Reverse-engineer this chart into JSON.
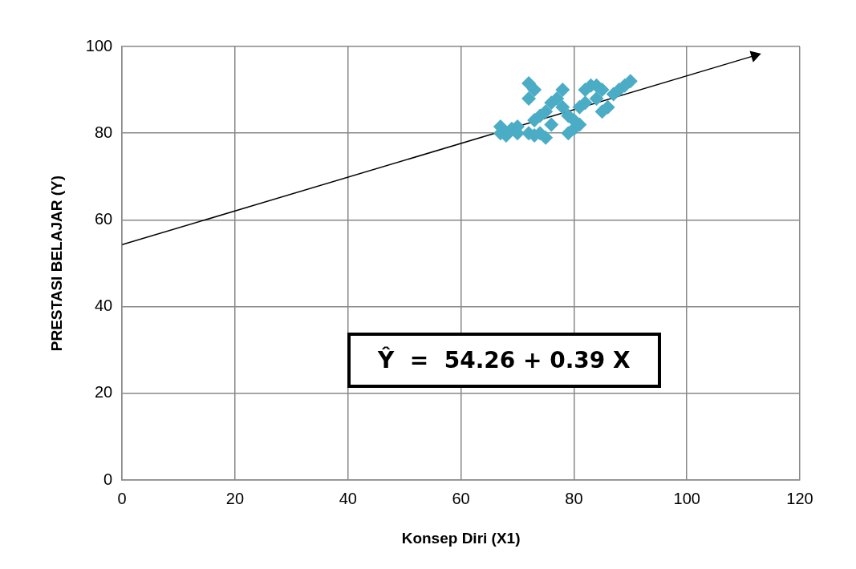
{
  "chart_data": {
    "type": "scatter",
    "xlabel": "Konsep Diri (X1)",
    "ylabel": "PRESTASI BELAJAR (Y)",
    "xlim": [
      0,
      120
    ],
    "xticks": [
      0,
      20,
      40,
      60,
      80,
      100,
      120
    ],
    "ylim": [
      0,
      100
    ],
    "yticks": [
      0,
      20,
      40,
      60,
      80,
      100
    ],
    "grid": true,
    "legend": false,
    "marker": "diamond",
    "annotations": [
      "Ŷ  =  54.26 + 0.39 X"
    ],
    "series": [
      {
        "color": "#4bacc6",
        "x": [
          67,
          67,
          68,
          69,
          70,
          70,
          72,
          72,
          73,
          72,
          73,
          74,
          75,
          73,
          74,
          75,
          76,
          76,
          77,
          78,
          78,
          79,
          79,
          80,
          80,
          81,
          81,
          82,
          82,
          83,
          84,
          84,
          85,
          85,
          86,
          87,
          88,
          89,
          90
        ],
        "values": [
          81.5,
          80,
          79.5,
          81,
          80,
          81.5,
          91.5,
          88,
          90,
          80,
          79.5,
          80,
          79,
          83,
          84,
          85,
          87,
          82,
          88,
          90,
          86,
          84,
          80,
          81,
          83,
          82,
          86,
          87,
          90,
          91,
          88,
          91,
          85,
          90,
          86,
          89,
          90,
          91,
          92
        ]
      },
      {
        "type": "line",
        "color": "#000000",
        "marker": "triangle",
        "x": [
          0,
          112
        ],
        "values": [
          54.3,
          97.9
        ]
      }
    ]
  }
}
